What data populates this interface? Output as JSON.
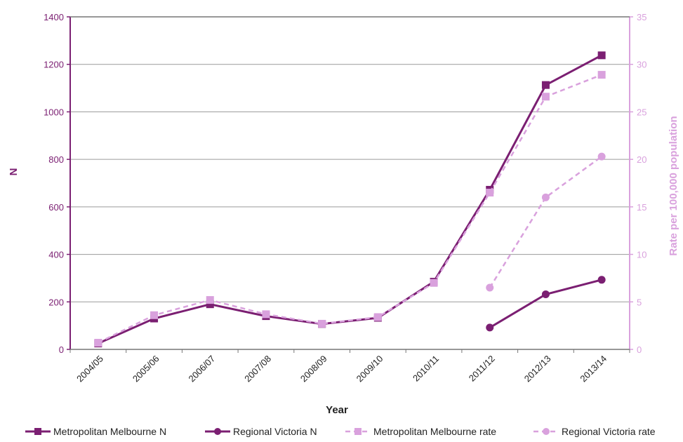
{
  "chart_data": {
    "type": "line",
    "categories": [
      "2004/05",
      "2005/06",
      "2006/07",
      "2007/08",
      "2008/09",
      "2009/10",
      "2010/11",
      "2011/12",
      "2012/13",
      "2013/14"
    ],
    "xlabel": "Year",
    "ylabel_left": "N",
    "ylabel_right": "Rate per 100,000 population",
    "ylim_left": [
      0,
      1400
    ],
    "ylim_right": [
      0,
      35
    ],
    "yticks_left": [
      "0",
      "200",
      "400",
      "600",
      "800",
      "1000",
      "1200",
      "1400"
    ],
    "yticks_right": [
      "0",
      "5",
      "10",
      "15",
      "20",
      "25",
      "30",
      "35"
    ],
    "grid": true,
    "legend_position": "bottom",
    "series": [
      {
        "name": "Metropolitan Melbourne N",
        "axis": "left",
        "marker": "square",
        "dashed": false,
        "color": "#7b1f72",
        "values": [
          25,
          130,
          190,
          140,
          107,
          133,
          285,
          672,
          1113,
          1238
        ]
      },
      {
        "name": "Regional Victoria N",
        "axis": "left",
        "marker": "circle",
        "dashed": false,
        "color": "#7b1f72",
        "values": [
          null,
          null,
          null,
          null,
          null,
          null,
          null,
          92,
          232,
          293
        ]
      },
      {
        "name": "Metropolitan Melbourne rate",
        "axis": "right",
        "marker": "square",
        "dashed": true,
        "color": "#d9a1dd",
        "values": [
          0.7,
          3.6,
          5.2,
          3.7,
          2.7,
          3.4,
          7.0,
          16.5,
          26.6,
          28.9
        ]
      },
      {
        "name": "Regional Victoria rate",
        "axis": "right",
        "marker": "circle",
        "dashed": true,
        "color": "#d9a1dd",
        "values": [
          null,
          null,
          null,
          null,
          null,
          null,
          null,
          6.5,
          16.0,
          20.3
        ]
      }
    ]
  },
  "colors": {
    "dark_series": "#7b1f72",
    "light_series": "#d9a1dd",
    "left_axis": "#7b1f72",
    "right_axis": "#d9a1dd",
    "grid": "#9a9a9a"
  }
}
